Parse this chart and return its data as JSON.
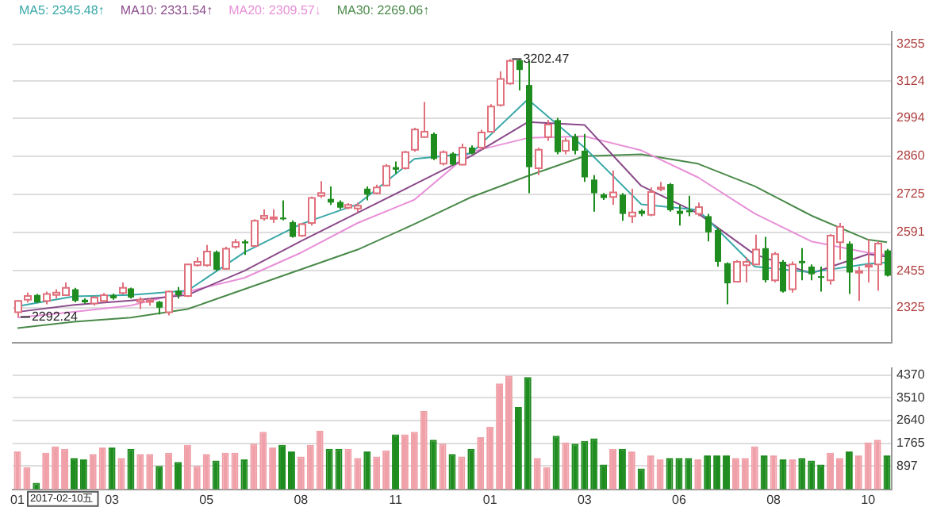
{
  "chart_data": [
    {
      "type": "candlestick",
      "legend": "top left",
      "grid": "y",
      "tick_labels": "y",
      "categories": [
        "01",
        null,
        null,
        null,
        null,
        null,
        null,
        null,
        null,
        null,
        "03",
        null,
        null,
        null,
        null,
        null,
        null,
        null,
        null,
        null,
        "05",
        null,
        null,
        null,
        null,
        null,
        null,
        null,
        null,
        null,
        "08",
        null,
        null,
        null,
        null,
        null,
        null,
        null,
        null,
        null,
        "11",
        null,
        null,
        null,
        null,
        null,
        null,
        null,
        null,
        null,
        "01",
        null,
        null,
        null,
        null,
        null,
        null,
        null,
        null,
        null,
        "03",
        null,
        null,
        null,
        null,
        null,
        null,
        null,
        null,
        null,
        "06",
        null,
        null,
        null,
        null,
        null,
        null,
        null,
        null,
        null,
        "08",
        null,
        null,
        null,
        null,
        null,
        null,
        null,
        null,
        null,
        "10",
        null,
        null
      ],
      "ohlc": [
        [
          2309,
          2352,
          2292.24,
          2349
        ],
        [
          2353,
          2378,
          2343,
          2366
        ],
        [
          2370,
          2373,
          2341,
          2344
        ],
        [
          2349,
          2382,
          2337,
          2373
        ],
        [
          2370,
          2390,
          2357,
          2378
        ],
        [
          2369,
          2414,
          2366,
          2395
        ],
        [
          2390,
          2395,
          2344,
          2349
        ],
        [
          2353,
          2358,
          2339,
          2344
        ],
        [
          2340,
          2366,
          2333,
          2361
        ],
        [
          2349,
          2377,
          2343,
          2369
        ],
        [
          2369,
          2375,
          2353,
          2358
        ],
        [
          2377,
          2414,
          2372,
          2395
        ],
        [
          2393,
          2396,
          2357,
          2361
        ],
        [
          2346,
          2362,
          2320,
          2353
        ],
        [
          2348,
          2357,
          2333,
          2351
        ],
        [
          2346,
          2349,
          2301,
          2325
        ],
        [
          2309,
          2385,
          2298,
          2382
        ],
        [
          2385,
          2398,
          2357,
          2369
        ],
        [
          2366,
          2480,
          2362,
          2478
        ],
        [
          2475,
          2503,
          2470,
          2487
        ],
        [
          2475,
          2546,
          2470,
          2523
        ],
        [
          2522,
          2527,
          2454,
          2459
        ],
        [
          2462,
          2540,
          2459,
          2533
        ],
        [
          2540,
          2567,
          2533,
          2556
        ],
        [
          2559,
          2565,
          2511,
          2552
        ],
        [
          2543,
          2637,
          2540,
          2632
        ],
        [
          2640,
          2672,
          2632,
          2649
        ],
        [
          2640,
          2672,
          2624,
          2644
        ],
        [
          2643,
          2704,
          2633,
          2637
        ],
        [
          2627,
          2633,
          2572,
          2575
        ],
        [
          2579,
          2624,
          2575,
          2620
        ],
        [
          2624,
          2717,
          2615,
          2712
        ],
        [
          2720,
          2772,
          2712,
          2730
        ],
        [
          2709,
          2753,
          2688,
          2696
        ],
        [
          2698,
          2704,
          2672,
          2678
        ],
        [
          2678,
          2694,
          2672,
          2688
        ],
        [
          2675,
          2696,
          2662,
          2685
        ],
        [
          2745,
          2753,
          2704,
          2724
        ],
        [
          2729,
          2759,
          2725,
          2749
        ],
        [
          2756,
          2832,
          2754,
          2825
        ],
        [
          2821,
          2841,
          2798,
          2812
        ],
        [
          2817,
          2879,
          2812,
          2874
        ],
        [
          2882,
          2960,
          2875,
          2954
        ],
        [
          2927,
          3051,
          2924,
          2946
        ],
        [
          2938,
          2943,
          2846,
          2850
        ],
        [
          2833,
          2880,
          2827,
          2874
        ],
        [
          2869,
          2874,
          2827,
          2830
        ],
        [
          2830,
          2904,
          2827,
          2890
        ],
        [
          2890,
          2898,
          2866,
          2869
        ],
        [
          2890,
          2953,
          2882,
          2943
        ],
        [
          2946,
          3043,
          2943,
          3035
        ],
        [
          3040,
          3159,
          3035,
          3132
        ],
        [
          3116,
          3202.47,
          3112,
          3196
        ],
        [
          3198,
          3200,
          3092,
          3164
        ],
        [
          3111,
          3195,
          2729,
          2821
        ],
        [
          2817,
          2890,
          2793,
          2882
        ],
        [
          2927,
          2987,
          2914,
          2971
        ],
        [
          2987,
          2995,
          2866,
          2874
        ],
        [
          2879,
          2924,
          2866,
          2914
        ],
        [
          2930,
          2938,
          2866,
          2879
        ],
        [
          2879,
          2938,
          2769,
          2785
        ],
        [
          2777,
          2793,
          2664,
          2729
        ],
        [
          2725,
          2730,
          2705,
          2712
        ],
        [
          2716,
          2809,
          2688,
          2732
        ],
        [
          2724,
          2730,
          2632,
          2656
        ],
        [
          2648,
          2745,
          2624,
          2661
        ],
        [
          2667,
          2672,
          2648,
          2656
        ],
        [
          2653,
          2749,
          2648,
          2733
        ],
        [
          2745,
          2769,
          2736,
          2749
        ],
        [
          2761,
          2765,
          2664,
          2669
        ],
        [
          2667,
          2688,
          2615,
          2656
        ],
        [
          2669,
          2720,
          2648,
          2662
        ],
        [
          2656,
          2696,
          2648,
          2680
        ],
        [
          2648,
          2656,
          2559,
          2591
        ],
        [
          2599,
          2607,
          2470,
          2487
        ],
        [
          2482,
          2485,
          2337,
          2411
        ],
        [
          2417,
          2493,
          2415,
          2487
        ],
        [
          2475,
          2503,
          2414,
          2487
        ],
        [
          2478,
          2583,
          2475,
          2530
        ],
        [
          2535,
          2575,
          2414,
          2422
        ],
        [
          2422,
          2522,
          2415,
          2514
        ],
        [
          2487,
          2493,
          2378,
          2382
        ],
        [
          2390,
          2488,
          2378,
          2478
        ],
        [
          2490,
          2535,
          2422,
          2482
        ],
        [
          2470,
          2478,
          2422,
          2443
        ],
        [
          2436,
          2470,
          2382,
          2433
        ],
        [
          2422,
          2585,
          2406,
          2579
        ],
        [
          2556,
          2624,
          2494,
          2611
        ],
        [
          2551,
          2559,
          2373,
          2449
        ],
        [
          2449,
          2470,
          2349,
          2454
        ],
        [
          2470,
          2567,
          2414,
          2475
        ],
        [
          2478,
          2559,
          2385,
          2551
        ],
        [
          2527,
          2532,
          2435,
          2438
        ]
      ],
      "series": [
        {
          "type": "line",
          "name": "MA5: 2345.48↑",
          "color": "#3aa8a8",
          "values": [
            2330,
            null,
            null,
            null,
            null,
            null,
            2365,
            null,
            null,
            null,
            null,
            null,
            2370,
            null,
            null,
            null,
            null,
            null,
            2385,
            null,
            null,
            null,
            null,
            null,
            2520,
            null,
            null,
            null,
            null,
            null,
            2620,
            null,
            null,
            null,
            null,
            null,
            2690,
            null,
            null,
            null,
            null,
            null,
            2850,
            null,
            null,
            null,
            null,
            null,
            2870,
            null,
            null,
            null,
            null,
            null,
            3060,
            null,
            null,
            null,
            null,
            null,
            2890,
            null,
            null,
            null,
            null,
            null,
            2690,
            null,
            null,
            null,
            null,
            null,
            2670,
            null,
            null,
            null,
            null,
            null,
            2470,
            null,
            null,
            null,
            null,
            null,
            2450,
            null,
            null,
            null,
            null,
            null,
            2480,
            null,
            2485
          ]
        },
        {
          "type": "line",
          "name": "MA10: 2331.54↑",
          "color": "#8a4a8a",
          "values": [
            2310,
            null,
            null,
            null,
            null,
            null,
            2335,
            null,
            null,
            null,
            null,
            null,
            2350,
            null,
            null,
            null,
            null,
            null,
            2370,
            null,
            null,
            null,
            null,
            null,
            2455,
            null,
            null,
            null,
            null,
            null,
            2560,
            null,
            null,
            null,
            null,
            null,
            2660,
            null,
            null,
            null,
            null,
            null,
            2760,
            null,
            null,
            null,
            null,
            null,
            2860,
            null,
            null,
            null,
            null,
            null,
            2980,
            null,
            null,
            null,
            null,
            null,
            2970,
            null,
            null,
            null,
            null,
            null,
            2755,
            null,
            null,
            null,
            null,
            null,
            2658,
            null,
            null,
            null,
            null,
            null,
            2513,
            null,
            null,
            null,
            null,
            null,
            2446,
            null,
            null,
            null,
            null,
            null,
            2514,
            null,
            2505
          ]
        },
        {
          "type": "line",
          "name": "MA20: 2309.57↓",
          "color": "#e890d8",
          "values": [
            2290,
            null,
            null,
            null,
            null,
            null,
            2310,
            null,
            null,
            null,
            null,
            null,
            2333,
            null,
            null,
            null,
            null,
            null,
            2382,
            null,
            null,
            null,
            null,
            null,
            2430,
            null,
            null,
            null,
            null,
            null,
            2519,
            null,
            null,
            null,
            null,
            null,
            2624,
            null,
            null,
            null,
            null,
            null,
            2706,
            null,
            null,
            null,
            null,
            null,
            2875,
            null,
            null,
            null,
            null,
            null,
            2924,
            null,
            null,
            null,
            null,
            null,
            2930,
            null,
            null,
            null,
            null,
            null,
            2880,
            null,
            null,
            null,
            null,
            null,
            2785,
            null,
            null,
            null,
            null,
            null,
            2657,
            null,
            null,
            null,
            null,
            null,
            2559,
            null,
            null,
            null,
            null,
            null,
            2519,
            null,
            2512
          ]
        },
        {
          "type": "line",
          "name": "MA30: 2269.06↑",
          "color": "#4a8a4a",
          "values": [
            2253,
            null,
            null,
            null,
            null,
            null,
            2275,
            null,
            null,
            null,
            null,
            null,
            2290,
            null,
            null,
            null,
            null,
            null,
            2320,
            null,
            null,
            null,
            null,
            null,
            2390,
            null,
            null,
            null,
            null,
            null,
            2460,
            null,
            null,
            null,
            null,
            null,
            2530,
            null,
            null,
            null,
            null,
            null,
            2620,
            null,
            null,
            null,
            null,
            null,
            2715,
            null,
            null,
            null,
            null,
            null,
            2790,
            null,
            null,
            null,
            null,
            null,
            2860,
            null,
            null,
            null,
            null,
            null,
            2866,
            null,
            null,
            null,
            null,
            null,
            2833,
            null,
            null,
            null,
            null,
            null,
            2754,
            null,
            null,
            null,
            null,
            null,
            2650,
            null,
            null,
            null,
            null,
            null,
            2565,
            null,
            2556
          ]
        }
      ],
      "marker": "none",
      "ylim": [
        2200,
        3300
      ],
      "yticks": [
        2325,
        2455,
        2591,
        2725,
        2860,
        2994,
        3124,
        3255
      ],
      "annotations": [
        "3202.47",
        "2292.24"
      ]
    },
    {
      "type": "bar",
      "grid": "y",
      "categories": [
        "01",
        null,
        null,
        null,
        null,
        null,
        null,
        null,
        null,
        null,
        "03",
        null,
        null,
        null,
        null,
        null,
        null,
        null,
        null,
        null,
        "05",
        null,
        null,
        null,
        null,
        null,
        null,
        null,
        null,
        null,
        "08",
        null,
        null,
        null,
        null,
        null,
        null,
        null,
        null,
        null,
        "11",
        null,
        null,
        null,
        null,
        null,
        null,
        null,
        null,
        null,
        "01",
        null,
        null,
        null,
        null,
        null,
        null,
        null,
        null,
        null,
        "03",
        null,
        null,
        null,
        null,
        null,
        null,
        null,
        null,
        null,
        "06",
        null,
        null,
        null,
        null,
        null,
        null,
        null,
        null,
        null,
        "08",
        null,
        null,
        null,
        null,
        null,
        null,
        null,
        null,
        null,
        "10",
        null,
        null
      ],
      "values": [
        1450,
        850,
        250,
        1400,
        1650,
        1550,
        1200,
        1150,
        1350,
        1600,
        1600,
        1200,
        1550,
        1350,
        1350,
        900,
        1400,
        1050,
        1700,
        900,
        1350,
        1100,
        1400,
        1400,
        1150,
        1750,
        2200,
        1600,
        1700,
        1450,
        1250,
        1700,
        2250,
        1550,
        1550,
        1550,
        1200,
        1450,
        1250,
        1500,
        2100,
        2100,
        2200,
        3000,
        1900,
        1750,
        1350,
        1250,
        1550,
        2000,
        2400,
        4050,
        4350,
        3150,
        4300,
        1200,
        850,
        2050,
        1800,
        1750,
        1850,
        1950,
        950,
        1550,
        1550,
        1450,
        800,
        1300,
        1150,
        1200,
        1200,
        1200,
        1150,
        1300,
        1300,
        1300,
        1200,
        1200,
        1650,
        1300,
        1300,
        1150,
        1150,
        1200,
        1100,
        950,
        1400,
        1200,
        1450,
        1300,
        1800,
        1900,
        1300
      ],
      "colors": [
        "#f0a0a8",
        "#f0a0a8",
        "#1e8c1e",
        "#f0a0a8",
        "#f0a0a8",
        "#f0a0a8",
        "#1e8c1e",
        "#1e8c1e",
        "#f0a0a8",
        "#f0a0a8",
        "#1e8c1e",
        "#f0a0a8",
        "#1e8c1e",
        "#f0a0a8",
        "#f0a0a8",
        "#1e8c1e",
        "#f0a0a8",
        "#1e8c1e",
        "#f0a0a8",
        "#f0a0a8",
        "#f0a0a8",
        "#1e8c1e",
        "#f0a0a8",
        "#f0a0a8",
        "#1e8c1e",
        "#f0a0a8",
        "#f0a0a8",
        "#f0a0a8",
        "#1e8c1e",
        "#1e8c1e",
        "#f0a0a8",
        "#f0a0a8",
        "#f0a0a8",
        "#1e8c1e",
        "#1e8c1e",
        "#f0a0a8",
        "#f0a0a8",
        "#1e8c1e",
        "#f0a0a8",
        "#f0a0a8",
        "#1e8c1e",
        "#f0a0a8",
        "#f0a0a8",
        "#f0a0a8",
        "#1e8c1e",
        "#f0a0a8",
        "#1e8c1e",
        "#f0a0a8",
        "#1e8c1e",
        "#f0a0a8",
        "#f0a0a8",
        "#f0a0a8",
        "#f0a0a8",
        "#1e8c1e",
        "#1e8c1e",
        "#f0a0a8",
        "#f0a0a8",
        "#1e8c1e",
        "#f0a0a8",
        "#1e8c1e",
        "#1e8c1e",
        "#1e8c1e",
        "#1e8c1e",
        "#f0a0a8",
        "#1e8c1e",
        "#f0a0a8",
        "#1e8c1e",
        "#f0a0a8",
        "#f0a0a8",
        "#1e8c1e",
        "#1e8c1e",
        "#1e8c1e",
        "#f0a0a8",
        "#1e8c1e",
        "#1e8c1e",
        "#1e8c1e",
        "#f0a0a8",
        "#f0a0a8",
        "#f0a0a8",
        "#1e8c1e",
        "#f0a0a8",
        "#1e8c1e",
        "#f0a0a8",
        "#1e8c1e",
        "#1e8c1e",
        "#1e8c1e",
        "#f0a0a8",
        "#f0a0a8",
        "#1e8c1e",
        "#f0a0a8",
        "#f0a0a8",
        "#f0a0a8",
        "#1e8c1e"
      ],
      "ylim": [
        0,
        4650
      ],
      "yticks": [
        897,
        1765,
        2640,
        3510,
        4370
      ],
      "annotations": [
        "2017-02-10五"
      ]
    }
  ]
}
